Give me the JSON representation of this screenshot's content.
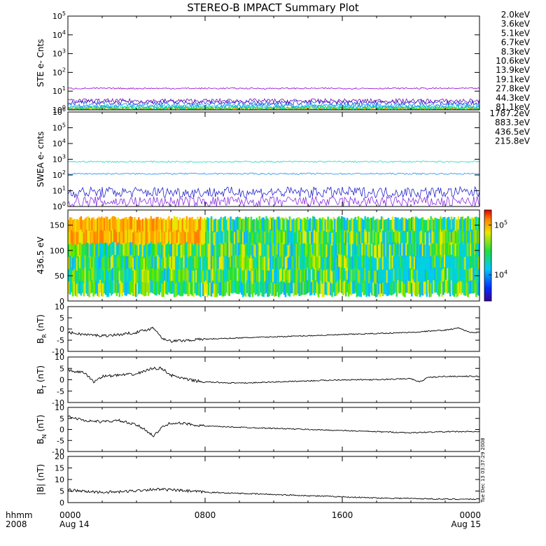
{
  "title": "STEREO-B IMPACT Summary Plot",
  "timestamp_vertical": "Tue Dec 13 03:37:29 2008",
  "xaxis": {
    "row1_label": "hhmm",
    "row2_label": "2008",
    "ticks": [
      {
        "hour": 0,
        "label": "0000",
        "sub": "Aug 14"
      },
      {
        "hour": 8,
        "label": "0800",
        "sub": ""
      },
      {
        "hour": 16,
        "label": "1600",
        "sub": ""
      },
      {
        "hour": 24,
        "label": "0000",
        "sub": "Aug 15"
      }
    ],
    "range_hours": [
      0,
      24
    ]
  },
  "colors": {
    "ste": [
      "#9400d3",
      "#6a0dad",
      "#2233dd",
      "#1e90ff",
      "#00c8c8",
      "#00d9a0",
      "#22c022",
      "#b8d400",
      "#e8c800",
      "#ff9900",
      "#e03000"
    ],
    "swea": [
      "#8a2be2",
      "#2222cc",
      "#1e90ff",
      "#20d8c0"
    ]
  },
  "chart_data": [
    {
      "panel": "ste",
      "type": "line",
      "ylabel": "STE e- Cnts",
      "yscale": "log",
      "ylim": [
        1,
        100000
      ],
      "yticks": [
        "10^0",
        "10^1",
        "10^2",
        "10^3",
        "10^4",
        "10^5"
      ],
      "series": [
        {
          "name": "2.0keV",
          "level": 14
        },
        {
          "name": "3.6keV",
          "level": 3
        },
        {
          "name": "5.1keV",
          "level": 2.5
        },
        {
          "name": "6.7keV",
          "level": 1.8
        },
        {
          "name": "8.3keV",
          "level": 1.5
        },
        {
          "name": "10.6keV",
          "level": 1.3
        },
        {
          "name": "13.9keV",
          "level": 1.2
        },
        {
          "name": "19.1keV",
          "level": 1.1
        },
        {
          "name": "27.8keV",
          "level": 1.05
        },
        {
          "name": "44.3keV",
          "level": 1.02
        },
        {
          "name": "81.1keV",
          "level": 1.0
        }
      ]
    },
    {
      "panel": "swea",
      "type": "line",
      "ylabel": "SWEA e- cnts",
      "yscale": "log",
      "ylim": [
        1,
        1000000
      ],
      "yticks": [
        "10^0",
        "10^1",
        "10^2",
        "10^3",
        "10^4",
        "10^5",
        "10^6"
      ],
      "series": [
        {
          "name": "1787.2eV",
          "level": 2
        },
        {
          "name": "883.3eV",
          "level": 8
        },
        {
          "name": "436.5eV",
          "level": 120
        },
        {
          "name": "215.8eV",
          "level": 700
        }
      ]
    },
    {
      "panel": "pad",
      "type": "heatmap",
      "ylabel": "436.5 eV",
      "ylim": [
        0,
        180
      ],
      "yticks": [
        0,
        50,
        100,
        150
      ],
      "colorbar": {
        "min": 3000,
        "max": 200000,
        "ticks": [
          "10^4",
          "10^5"
        ]
      }
    },
    {
      "panel": "br",
      "type": "line",
      "ylabel": "B_R (nT)",
      "ylim": [
        -10,
        10
      ],
      "yticks": [
        -10,
        -5,
        0,
        5,
        10
      ],
      "x": [
        0,
        1,
        2,
        3,
        4,
        5,
        5.5,
        6,
        7,
        8,
        10,
        12,
        14,
        16,
        18,
        20,
        22,
        22.8,
        23.4,
        24
      ],
      "y": [
        -1.5,
        -2.5,
        -3,
        -2.5,
        -1.5,
        0.5,
        -4,
        -5.5,
        -5,
        -4.5,
        -4,
        -3.5,
        -3,
        -2.5,
        -2,
        -1.5,
        -0.5,
        0.5,
        -1.5,
        -1.5
      ]
    },
    {
      "panel": "bt",
      "type": "line",
      "ylabel": "B_T (nT)",
      "ylim": [
        -10,
        10
      ],
      "yticks": [
        -10,
        -5,
        0,
        5,
        10
      ],
      "x": [
        0,
        0.5,
        1,
        1.5,
        2,
        3,
        4,
        4.5,
        5,
        5.5,
        6,
        7,
        8,
        10,
        12,
        14,
        16,
        18,
        20,
        20.5,
        21,
        22,
        23,
        24
      ],
      "y": [
        4,
        3.5,
        3,
        -1,
        1.5,
        2,
        2.5,
        4,
        5,
        5,
        2,
        0,
        -1,
        -1.5,
        -1,
        -0.5,
        0,
        0,
        0.5,
        -1,
        1,
        1.5,
        1.5,
        1.5
      ]
    },
    {
      "panel": "bn",
      "type": "line",
      "ylabel": "B_N (nT)",
      "ylim": [
        -10,
        10
      ],
      "yticks": [
        -10,
        -5,
        0,
        5,
        10
      ],
      "x": [
        0,
        1,
        2,
        3,
        4,
        4.5,
        5,
        5.5,
        6,
        7,
        8,
        10,
        12,
        14,
        16,
        18,
        20,
        22,
        24
      ],
      "y": [
        6,
        4,
        3.5,
        4,
        2,
        0,
        -3,
        1,
        3,
        2.5,
        1.5,
        1,
        0.5,
        0,
        -0.5,
        -1,
        -1.5,
        -1,
        -1
      ]
    },
    {
      "panel": "bmag",
      "type": "line",
      "ylabel": "|B| (nT)",
      "ylim": [
        0,
        20
      ],
      "yticks": [
        0,
        5,
        10,
        15,
        20
      ],
      "x": [
        0,
        1,
        2,
        3,
        4,
        5,
        6,
        7,
        8,
        10,
        12,
        14,
        16,
        18,
        20,
        22,
        24
      ],
      "y": [
        5.5,
        4.8,
        4.5,
        4.6,
        5.2,
        5.8,
        5.5,
        5,
        4.5,
        4,
        3.5,
        3,
        2.5,
        2,
        1.8,
        1.5,
        1.5
      ]
    }
  ]
}
